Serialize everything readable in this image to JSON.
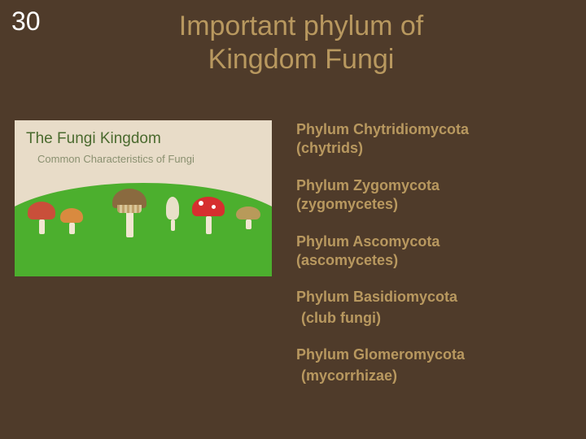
{
  "slide_number": "30",
  "title": "Important phylum of Kingdom Fungi",
  "illustration": {
    "title": "The Fungi Kingdom",
    "subtitle": "Common Characteristics of Fungi",
    "sky_color": "#e8dcc8",
    "hill_color": "#4caf2e",
    "title_color": "#4a6a2e",
    "subtitle_color": "#8a9070"
  },
  "phyla": [
    {
      "name": "Phylum Chytridiomycota",
      "common": "(chytrids)"
    },
    {
      "name": "Phylum Zygomycota",
      "common": "(zygomycetes)"
    },
    {
      "name": "Phylum Ascomycota",
      "common": "(ascomycetes)"
    },
    {
      "name": "Phylum Basidiomycota",
      "common": "(club fungi)"
    },
    {
      "name": "Phylum Glomeromycota",
      "common": "(mycorrhizae)"
    }
  ],
  "colors": {
    "background": "#4f3b2a",
    "accent_text": "#b8985f",
    "slide_number": "#ffffff"
  },
  "typography": {
    "title_fontsize": 34,
    "list_fontsize": 18,
    "slide_number_fontsize": 32
  }
}
